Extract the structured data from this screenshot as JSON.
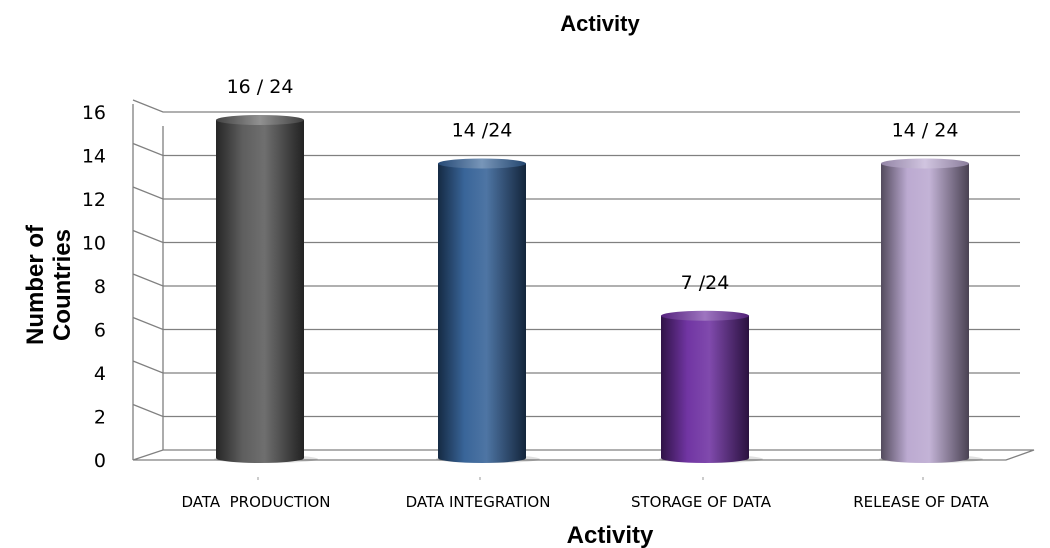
{
  "chart_data": {
    "type": "bar",
    "title": "Activity",
    "xlabel": "Activity",
    "ylabel_lines": [
      "Number of",
      "Countries"
    ],
    "categories": [
      "DATA  PRODUCTION",
      "DATA INTEGRATION",
      "STORAGE OF DATA",
      "RELEASE OF DATA"
    ],
    "values": [
      16,
      14,
      7,
      14
    ],
    "data_labels": [
      "16 / 24",
      "14 /24",
      "7 /24",
      "14 / 24"
    ],
    "ylim": [
      0,
      16
    ],
    "yticks": [
      "0",
      "2",
      "4",
      "6",
      "8",
      "10",
      "12",
      "14",
      "16"
    ],
    "grid": true,
    "bar_colors": [
      "#555555",
      "#2f5d94",
      "#6a2a9e",
      "#b8a6cf"
    ]
  }
}
